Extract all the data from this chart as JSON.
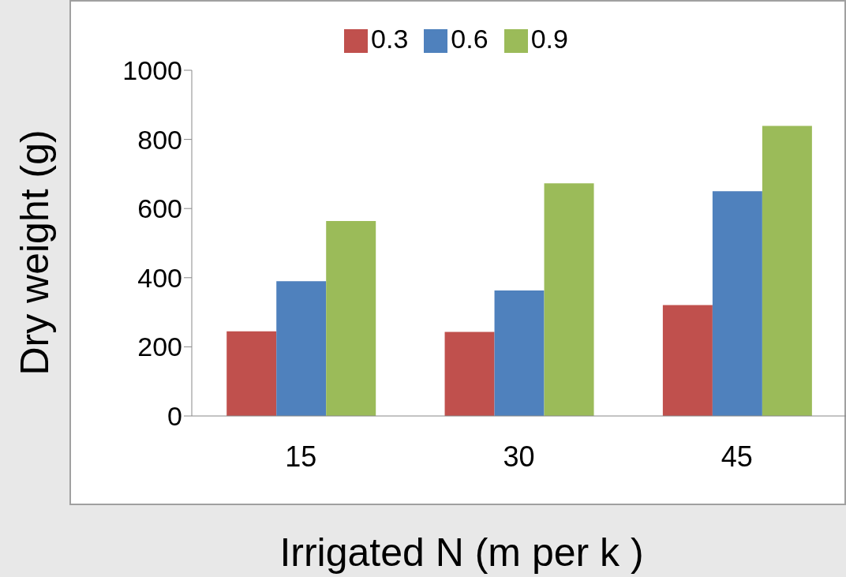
{
  "chart_data": {
    "type": "bar",
    "xlabel": "Irrigated N (m per k )",
    "ylabel": "Dry weight (g)",
    "categories": [
      "15",
      "30",
      "45"
    ],
    "series": [
      {
        "name": "0.3",
        "color": "#c0504d",
        "values": [
          245,
          243,
          321
        ]
      },
      {
        "name": "0.6",
        "color": "#4f81bd",
        "values": [
          390,
          363,
          650
        ]
      },
      {
        "name": "0.9",
        "color": "#9bbb59",
        "values": [
          564,
          673,
          839
        ]
      }
    ],
    "ylim": [
      0,
      1000
    ],
    "yticks": [
      0,
      200,
      400,
      600,
      800,
      1000
    ],
    "grid": false,
    "legend": "top"
  }
}
